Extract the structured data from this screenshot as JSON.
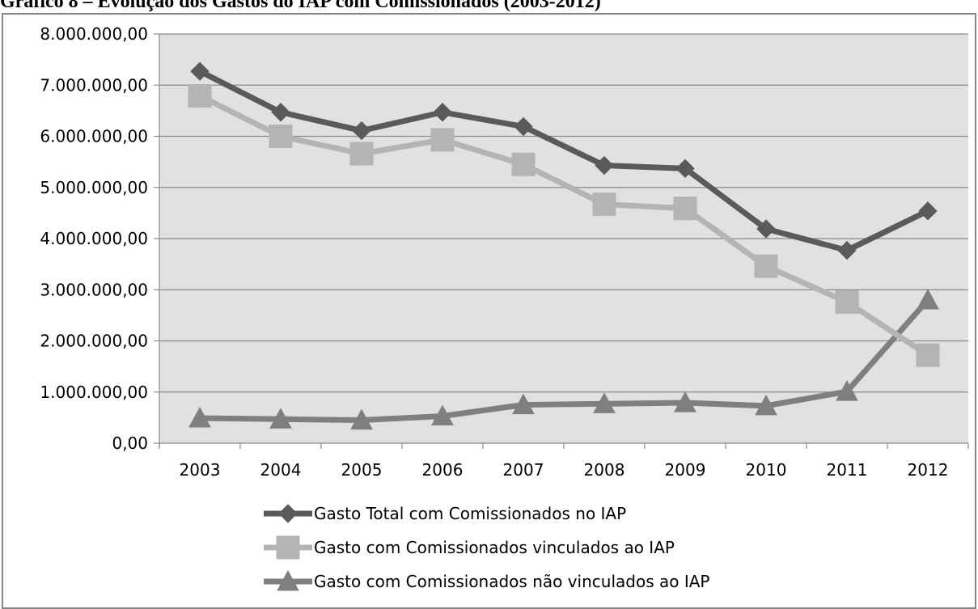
{
  "caption": "Gráfico 8 – Evolução dos Gastos do IAP com Comissionados (2003-2012)",
  "chart_data": {
    "type": "line",
    "title": "",
    "xlabel": "",
    "ylabel": "",
    "categories": [
      "2003",
      "2004",
      "2005",
      "2006",
      "2007",
      "2008",
      "2009",
      "2010",
      "2011",
      "2012"
    ],
    "ylim": [
      0,
      8000000
    ],
    "yticks": [
      0,
      1000000,
      2000000,
      3000000,
      4000000,
      5000000,
      6000000,
      7000000,
      8000000
    ],
    "ytick_labels": [
      "0,00",
      "1.000.000,00",
      "2.000.000,00",
      "3.000.000,00",
      "4.000.000,00",
      "5.000.000,00",
      "6.000.000,00",
      "7.000.000,00",
      "8.000.000,00"
    ],
    "grid": true,
    "legend_position": "bottom",
    "series": [
      {
        "name": "Gasto Total com Comissionados no IAP",
        "marker": "diamond",
        "color": "#5a5a5a",
        "values": [
          7270000,
          6470000,
          6110000,
          6470000,
          6190000,
          5430000,
          5370000,
          4190000,
          3770000,
          4540000
        ]
      },
      {
        "name": "Gasto com Comissionados vinculados ao IAP",
        "marker": "square",
        "color": "#b4b4b4",
        "values": [
          6790000,
          6000000,
          5660000,
          5930000,
          5450000,
          4670000,
          4590000,
          3460000,
          2760000,
          1720000
        ]
      },
      {
        "name": "Gasto com Comissionados não vinculados ao IAP",
        "marker": "triangle",
        "color": "#7f7f7f",
        "values": [
          490000,
          470000,
          450000,
          530000,
          750000,
          770000,
          790000,
          730000,
          1010000,
          2800000
        ]
      }
    ]
  }
}
